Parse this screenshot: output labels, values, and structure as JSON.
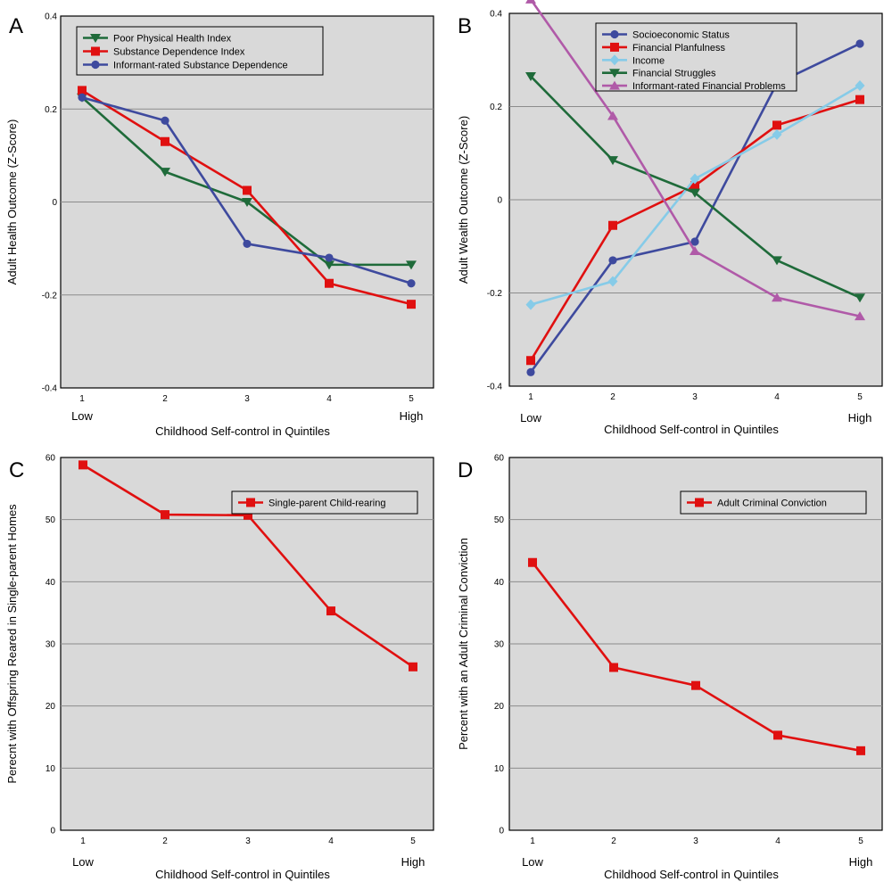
{
  "chart_data": [
    {
      "panel": "A",
      "type": "line",
      "categories": [
        "1",
        "2",
        "3",
        "4",
        "5"
      ],
      "x_end_labels": [
        "Low",
        "High"
      ],
      "xlabel": "Childhood Self-control in Quintiles",
      "ylabel": "Adult Health Outcome (Z-Score)",
      "ylim": [
        -0.4,
        0.4
      ],
      "yticks": [
        0.4,
        0.2,
        0,
        -0.2,
        -0.4
      ],
      "ytick_labels": [
        "0.4",
        "0.2",
        "0",
        "-0.2",
        "-0.4"
      ],
      "grid": true,
      "legend_position": "top-left",
      "series": [
        {
          "name": "Poor Physical Health Index",
          "color": "#1f6b3a",
          "marker": "triangle-down",
          "values": [
            0.225,
            0.065,
            0.0,
            -0.135,
            -0.135
          ]
        },
        {
          "name": "Substance Dependence Index",
          "color": "#e01010",
          "marker": "square",
          "values": [
            0.24,
            0.13,
            0.025,
            -0.175,
            -0.22
          ]
        },
        {
          "name": "Informant-rated Substance Dependence",
          "color": "#3e4a9e",
          "marker": "circle",
          "values": [
            0.225,
            0.175,
            -0.09,
            -0.12,
            -0.175
          ]
        }
      ]
    },
    {
      "panel": "B",
      "type": "line",
      "categories": [
        "1",
        "2",
        "3",
        "4",
        "5"
      ],
      "x_end_labels": [
        "Low",
        "High"
      ],
      "xlabel": "Childhood Self-control in Quintiles",
      "ylabel": "Adult Wealth Outcome (Z-Score)",
      "ylim": [
        -0.4,
        0.4
      ],
      "yticks": [
        0.4,
        0.2,
        0,
        -0.2,
        -0.4
      ],
      "ytick_labels": [
        "0.4",
        "0.2",
        "0",
        "-0.2",
        "-0.4"
      ],
      "grid": true,
      "legend_position": "top-center",
      "series": [
        {
          "name": "Socioeconomic Status",
          "color": "#3e4a9e",
          "marker": "circle",
          "values": [
            -0.37,
            -0.13,
            -0.09,
            0.25,
            0.335
          ]
        },
        {
          "name": "Financial Planfulness",
          "color": "#e01010",
          "marker": "square",
          "values": [
            -0.345,
            -0.055,
            0.03,
            0.16,
            0.215
          ]
        },
        {
          "name": "Income",
          "color": "#86cbe8",
          "marker": "diamond",
          "values": [
            -0.225,
            -0.175,
            0.045,
            0.14,
            0.245
          ]
        },
        {
          "name": "Financial Struggles",
          "color": "#1f6b3a",
          "marker": "triangle-down",
          "values": [
            0.265,
            0.085,
            0.015,
            -0.13,
            -0.21
          ]
        },
        {
          "name": "Informant-rated Financial Problems",
          "color": "#b05aa8",
          "marker": "triangle-up",
          "values": [
            0.43,
            0.18,
            -0.11,
            -0.21,
            -0.25
          ]
        }
      ]
    },
    {
      "panel": "C",
      "type": "line",
      "categories": [
        "1",
        "2",
        "3",
        "4",
        "5"
      ],
      "x_end_labels": [
        "Low",
        "High"
      ],
      "xlabel": "Childhood Self-control in Quintiles",
      "ylabel": "Perecnt with Offspring Reared in Single-parent Homes",
      "ylim": [
        0,
        60
      ],
      "yticks": [
        60,
        50,
        40,
        30,
        20,
        10,
        0
      ],
      "ytick_labels": [
        "60",
        "50",
        "40",
        "30",
        "20",
        "10",
        "0"
      ],
      "grid": true,
      "legend_position": "top-right",
      "series": [
        {
          "name": "Single-parent Child-rearing",
          "color": "#e01010",
          "marker": "square",
          "values": [
            58.8,
            50.8,
            50.7,
            35.3,
            26.3
          ]
        }
      ]
    },
    {
      "panel": "D",
      "type": "line",
      "categories": [
        "1",
        "2",
        "3",
        "4",
        "5"
      ],
      "x_end_labels": [
        "Low",
        "High"
      ],
      "xlabel": "Childhood Self-control in Quintiles",
      "ylabel": "Percent with an Adult Criminal Conviction",
      "ylim": [
        0,
        60
      ],
      "yticks": [
        60,
        50,
        40,
        30,
        20,
        10,
        0
      ],
      "ytick_labels": [
        "60",
        "50",
        "40",
        "30",
        "20",
        "10",
        "0"
      ],
      "grid": true,
      "legend_position": "top-right",
      "series": [
        {
          "name": "Adult Criminal Conviction",
          "color": "#e01010",
          "marker": "square",
          "values": [
            43.1,
            26.2,
            23.3,
            15.3,
            12.8
          ]
        }
      ]
    }
  ]
}
